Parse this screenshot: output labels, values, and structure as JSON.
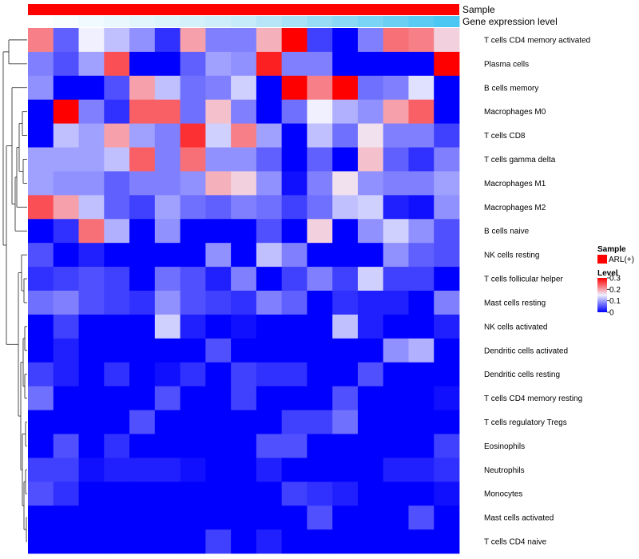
{
  "chart_data": {
    "type": "heatmap",
    "title": "",
    "annotations": {
      "sample_label": "Sample",
      "expression_label": "Gene expression level",
      "sample_color": "#ff0000",
      "expression_gradient": [
        "#ffffff",
        "#c6ebf9",
        "#4cc6f2"
      ]
    },
    "rows": [
      "T cells CD4 memory activated",
      "Plasma cells",
      "B cells memory",
      "Macrophages M0",
      "T cells CD8",
      "T cells gamma delta",
      "Macrophages M1",
      "Macrophages M2",
      "B cells naive",
      "NK cells resting",
      "T cells follicular helper",
      "Mast cells resting",
      "NK cells activated",
      "Dendritic cells activated",
      "Dendritic cells resting",
      "T cells CD4 memory resting",
      "T cells regulatory  Tregs",
      "Eosinophils",
      "Neutrophils",
      "Monocytes",
      "Mast cells activated",
      "T cells CD4 naive"
    ],
    "values": [
      [
        0.22,
        0.06,
        0.15,
        0.12,
        0.09,
        0.03,
        0.2,
        0.08,
        0.08,
        0.19,
        0.3,
        0.04,
        0.0,
        0.08,
        0.23,
        0.22,
        0.17
      ],
      [
        0.08,
        0.05,
        0.1,
        0.25,
        0.0,
        0.0,
        0.06,
        0.1,
        0.09,
        0.28,
        0.08,
        0.08,
        0.0,
        0.0,
        0.0,
        0.0,
        0.3
      ],
      [
        0.09,
        0.0,
        0.0,
        0.05,
        0.2,
        0.12,
        0.07,
        0.08,
        0.13,
        0.0,
        0.3,
        0.22,
        0.3,
        0.07,
        0.08,
        0.14,
        0.0
      ],
      [
        0.0,
        0.3,
        0.08,
        0.03,
        0.24,
        0.24,
        0.07,
        0.18,
        0.08,
        0.0,
        0.07,
        0.15,
        0.11,
        0.09,
        0.2,
        0.24,
        0.0
      ],
      [
        0.0,
        0.12,
        0.1,
        0.2,
        0.1,
        0.08,
        0.27,
        0.13,
        0.22,
        0.1,
        0.0,
        0.12,
        0.07,
        0.16,
        0.08,
        0.08,
        0.04
      ],
      [
        0.1,
        0.1,
        0.1,
        0.12,
        0.24,
        0.08,
        0.23,
        0.09,
        0.09,
        0.06,
        0.0,
        0.06,
        0.0,
        0.18,
        0.06,
        0.03,
        0.08
      ],
      [
        0.1,
        0.09,
        0.09,
        0.06,
        0.08,
        0.08,
        0.09,
        0.19,
        0.17,
        0.09,
        0.01,
        0.08,
        0.16,
        0.09,
        0.08,
        0.08,
        0.1
      ],
      [
        0.25,
        0.2,
        0.12,
        0.06,
        0.04,
        0.1,
        0.07,
        0.06,
        0.08,
        0.07,
        0.04,
        0.07,
        0.12,
        0.13,
        0.02,
        0.01,
        0.09
      ],
      [
        0.0,
        0.03,
        0.23,
        0.11,
        0.0,
        0.09,
        0.0,
        0.0,
        0.0,
        0.05,
        0.0,
        0.17,
        0.0,
        0.09,
        0.13,
        0.09,
        0.05
      ],
      [
        0.05,
        0.0,
        0.02,
        0.0,
        0.0,
        0.0,
        0.0,
        0.09,
        0.0,
        0.12,
        0.08,
        0.0,
        0.0,
        0.0,
        0.09,
        0.06,
        0.05
      ],
      [
        0.03,
        0.04,
        0.05,
        0.04,
        0.0,
        0.07,
        0.05,
        0.02,
        0.08,
        0.0,
        0.04,
        0.08,
        0.04,
        0.13,
        0.04,
        0.04,
        0.0
      ],
      [
        0.07,
        0.08,
        0.05,
        0.04,
        0.03,
        0.09,
        0.05,
        0.04,
        0.03,
        0.08,
        0.06,
        0.0,
        0.03,
        0.02,
        0.02,
        0.0,
        0.08
      ],
      [
        0.0,
        0.04,
        0.0,
        0.0,
        0.0,
        0.13,
        0.02,
        0.0,
        0.01,
        0.0,
        0.0,
        0.0,
        0.12,
        0.02,
        0.0,
        0.0,
        0.02
      ],
      [
        0.0,
        0.02,
        0.0,
        0.0,
        0.0,
        0.0,
        0.0,
        0.05,
        0.0,
        0.0,
        0.0,
        0.0,
        0.0,
        0.0,
        0.09,
        0.11,
        0.0
      ],
      [
        0.04,
        0.02,
        0.0,
        0.03,
        0.0,
        0.01,
        0.03,
        0.0,
        0.04,
        0.03,
        0.03,
        0.0,
        0.0,
        0.05,
        0.0,
        0.0,
        0.0
      ],
      [
        0.07,
        0.0,
        0.0,
        0.0,
        0.0,
        0.05,
        0.0,
        0.0,
        0.04,
        0.0,
        0.0,
        0.0,
        0.05,
        0.0,
        0.0,
        0.0,
        0.01
      ],
      [
        0.0,
        0.0,
        0.0,
        0.0,
        0.05,
        0.0,
        0.0,
        0.0,
        0.0,
        0.0,
        0.04,
        0.04,
        0.07,
        0.0,
        0.0,
        0.0,
        0.0
      ],
      [
        0.0,
        0.05,
        0.0,
        0.03,
        0.0,
        0.0,
        0.0,
        0.0,
        0.0,
        0.05,
        0.05,
        0.0,
        0.0,
        0.0,
        0.0,
        0.0,
        0.04
      ],
      [
        0.04,
        0.04,
        0.01,
        0.02,
        0.02,
        0.02,
        0.01,
        0.0,
        0.0,
        0.02,
        0.0,
        0.0,
        0.0,
        0.0,
        0.02,
        0.02,
        0.03
      ],
      [
        0.05,
        0.03,
        0.0,
        0.0,
        0.0,
        0.0,
        0.0,
        0.0,
        0.0,
        0.0,
        0.04,
        0.03,
        0.02,
        0.0,
        0.0,
        0.0,
        0.01
      ],
      [
        0.0,
        0.0,
        0.0,
        0.0,
        0.0,
        0.0,
        0.0,
        0.0,
        0.0,
        0.0,
        0.0,
        0.05,
        0.0,
        0.0,
        0.0,
        0.05,
        0.0
      ],
      [
        0.0,
        0.0,
        0.0,
        0.0,
        0.0,
        0.0,
        0.0,
        0.04,
        0.0,
        0.02,
        0.0,
        0.0,
        0.0,
        0.0,
        0.0,
        0.0,
        0.0
      ]
    ],
    "color_scale": {
      "stops": [
        {
          "value": 0.0,
          "color": "#0000ff"
        },
        {
          "value": 0.15,
          "color": "#f0f0ff"
        },
        {
          "value": 0.3,
          "color": "#ff0000"
        }
      ],
      "range": [
        0,
        0.3
      ]
    },
    "legend": {
      "sample_title": "Sample",
      "sample_entry": "ARL(+)",
      "level_title": "Level",
      "ticks": [
        "0.3",
        "0.2",
        "0.1",
        "0"
      ],
      "tick_values": [
        0.3,
        0.2,
        0.1,
        0.0
      ],
      "position": "right"
    }
  }
}
